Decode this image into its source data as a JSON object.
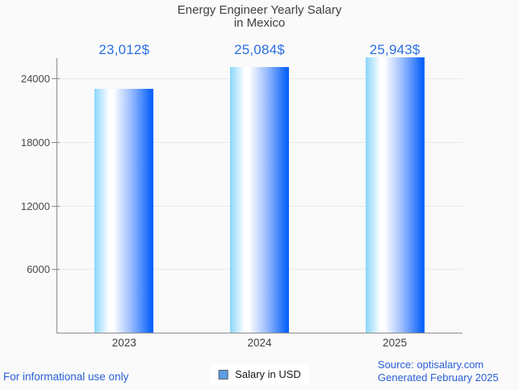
{
  "chart_data": {
    "type": "bar",
    "title": "Energy Engineer Yearly Salary\nin Mexico",
    "categories": [
      "2023",
      "2024",
      "2025"
    ],
    "values": [
      23012,
      25084,
      25943
    ],
    "value_labels": [
      "23,012$",
      "25,084$",
      "25,943$"
    ],
    "series": [
      {
        "name": "Salary in USD",
        "values": [
          23012,
          25084,
          25943
        ]
      }
    ],
    "legend_label": "Salary in USD",
    "legend_position": "bottom",
    "xlabel": "",
    "ylabel": "",
    "ylim": [
      0,
      26000
    ],
    "yticks": [
      6000,
      12000,
      18000,
      24000
    ],
    "grid": true,
    "colors": {
      "bar_gradient_left": "#8ad5fa",
      "bar_gradient_mid": "#ffffff",
      "bar_gradient_right": "#0c64fa",
      "value_label": "#2b6fe3",
      "axis": "#8c8c8c",
      "gridline": "#e9e9e9",
      "legend_fill": "#5b9ce2",
      "background": "#fafafa"
    }
  },
  "footer": {
    "disclaimer": "For informational use only",
    "source": "Source: optisalary.com",
    "generated": "Generated February 2025",
    "color": "#2a5ed6"
  }
}
